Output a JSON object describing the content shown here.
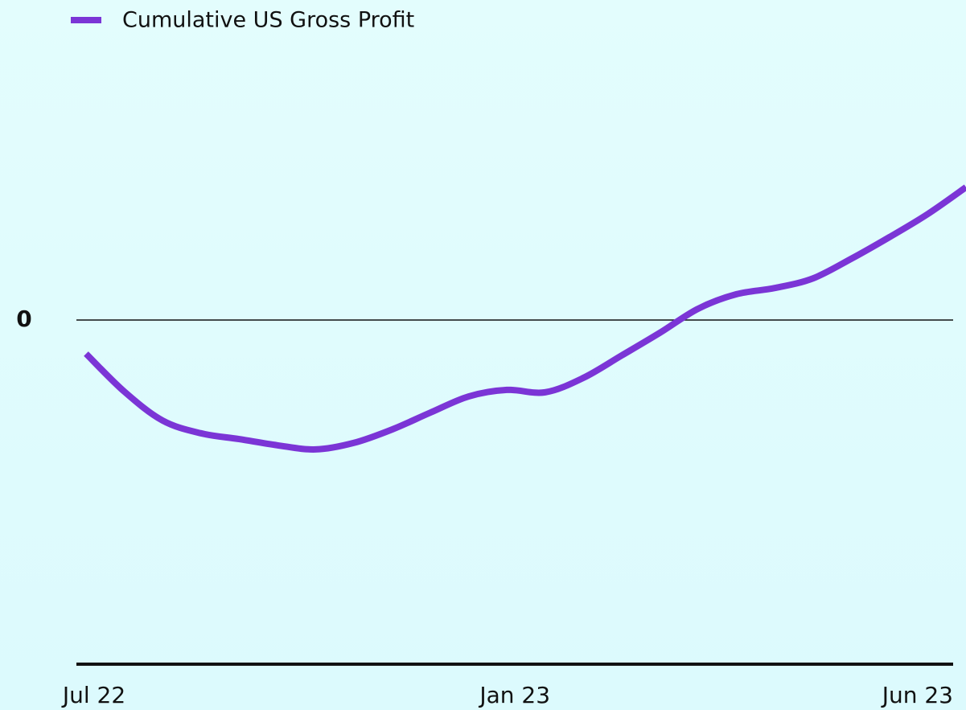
{
  "chart_data": {
    "type": "line",
    "categories": [
      "Jul 22",
      null,
      null,
      null,
      null,
      null,
      null,
      null,
      null,
      null,
      null,
      "Jan 23",
      null,
      null,
      null,
      null,
      null,
      null,
      null,
      null,
      null,
      null,
      null,
      "Jun 23"
    ],
    "series": [
      {
        "name": "Cumulative US Gross Profit",
        "color": "#7b35d6",
        "values": [
          -9.8,
          -20.8,
          -29.2,
          -32.9,
          -34.6,
          -36.4,
          -37.6,
          -35.7,
          -31.8,
          -26.9,
          -22.2,
          -20.3,
          -21.0,
          -16.8,
          -10.3,
          -3.7,
          3.3,
          7.5,
          9.3,
          12.1,
          17.8,
          24.1,
          30.8,
          38.6
        ]
      }
    ],
    "ylim": [
      -100,
      84
    ],
    "yticks": [
      0
    ],
    "grid": true,
    "legend": "top-left"
  }
}
